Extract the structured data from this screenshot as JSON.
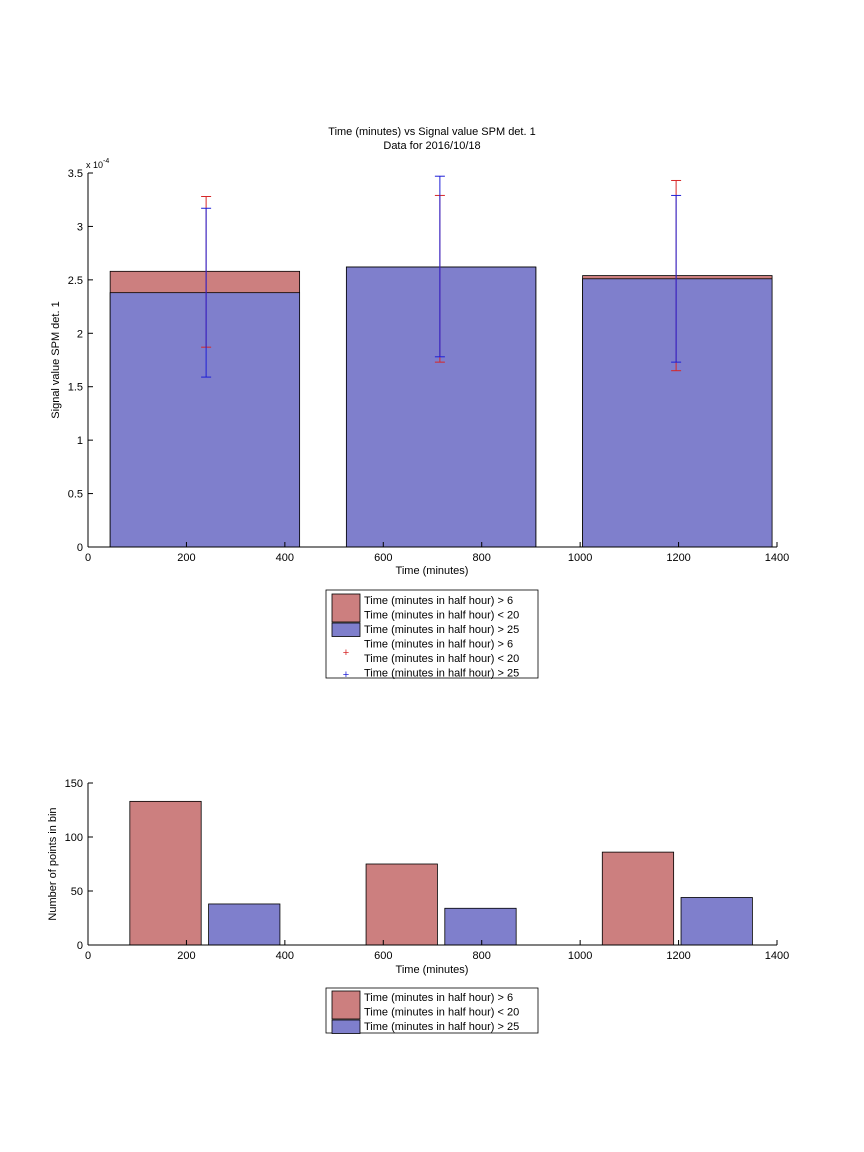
{
  "chart_data": [
    {
      "type": "bar",
      "title": "Time (minutes) vs Signal value SPM det. 1",
      "subtitle": "Data for 2016/10/18",
      "xlabel": "Time (minutes)",
      "ylabel": "Signal value SPM det. 1",
      "exponent_label": "x 10",
      "exponent_power": "-4",
      "xlim": [
        0,
        1400
      ],
      "ylim": [
        0,
        3.5
      ],
      "y_scale": 0.0001,
      "xticks": [
        0,
        200,
        400,
        600,
        800,
        1000,
        1200,
        1400
      ],
      "yticks": [
        0,
        0.5,
        1,
        1.5,
        2,
        2.5,
        3,
        3.5
      ],
      "ytick_labels": [
        "0",
        "0.5",
        "1",
        "1.5",
        "2",
        "2.5",
        "3",
        "3.5"
      ],
      "bar_x_ranges": [
        [
          45,
          430
        ],
        [
          525,
          910
        ],
        [
          1005,
          1390
        ]
      ],
      "series": [
        {
          "name": "Time (minutes in half hour) > 6\nTime (minutes in half hour) < 20",
          "color": "#cc7f7f",
          "values": [
            2.58,
            2.62,
            2.54
          ],
          "errorbar_x": [
            240,
            715,
            1195
          ],
          "errorbar_low": [
            1.87,
            1.73,
            1.65
          ],
          "errorbar_high": [
            3.28,
            3.29,
            3.43
          ],
          "errorbar_color": "#d62728"
        },
        {
          "name": "Time (minutes in half hour) > 25",
          "color": "#7f7fcc",
          "values": [
            2.38,
            2.62,
            2.51
          ],
          "errorbar_x": [
            240,
            715,
            1195
          ],
          "errorbar_low": [
            1.59,
            1.78,
            1.73
          ],
          "errorbar_high": [
            3.17,
            3.47,
            3.29
          ],
          "errorbar_color": "#1f1fd6"
        }
      ],
      "legend": {
        "placement": "below",
        "entries": [
          {
            "line1": "Time (minutes in half hour) > 6",
            "line2": "Time (minutes in half hour) < 20",
            "swatch": "#cc7f7f",
            "kind": "patch"
          },
          {
            "line1": "Time (minutes in half hour) > 25",
            "swatch": "#7f7fcc",
            "kind": "patch"
          },
          {
            "line1": "Time (minutes in half hour) > 6",
            "line2": "Time (minutes in half hour) < 20",
            "swatch": "#d62728",
            "kind": "marker"
          },
          {
            "line1": "Time (minutes in half hour) > 25",
            "swatch": "#1f1fd6",
            "kind": "marker"
          }
        ]
      }
    },
    {
      "type": "bar",
      "xlabel": "Time (minutes)",
      "ylabel": "Number of points in bin",
      "xlim": [
        0,
        1400
      ],
      "ylim": [
        0,
        150
      ],
      "xticks": [
        0,
        200,
        400,
        600,
        800,
        1000,
        1200,
        1400
      ],
      "yticks": [
        0,
        50,
        100,
        150
      ],
      "series": [
        {
          "name": "Time (minutes in half hour) > 6\nTime (minutes in half hour) < 20",
          "color": "#cc7f7f",
          "x_ranges": [
            [
              85,
              230
            ],
            [
              565,
              710
            ],
            [
              1045,
              1190
            ]
          ],
          "values": [
            133,
            75,
            86
          ]
        },
        {
          "name": "Time (minutes in half hour) > 25",
          "color": "#7f7fcc",
          "x_ranges": [
            [
              245,
              390
            ],
            [
              725,
              870
            ],
            [
              1205,
              1350
            ]
          ],
          "values": [
            38,
            34,
            44
          ]
        }
      ],
      "legend": {
        "placement": "below",
        "entries": [
          {
            "line1": "Time (minutes in half hour) > 6",
            "line2": "Time (minutes in half hour) < 20",
            "swatch": "#cc7f7f",
            "kind": "patch"
          },
          {
            "line1": "Time (minutes in half hour) > 25",
            "swatch": "#7f7fcc",
            "kind": "patch"
          }
        ]
      }
    }
  ]
}
